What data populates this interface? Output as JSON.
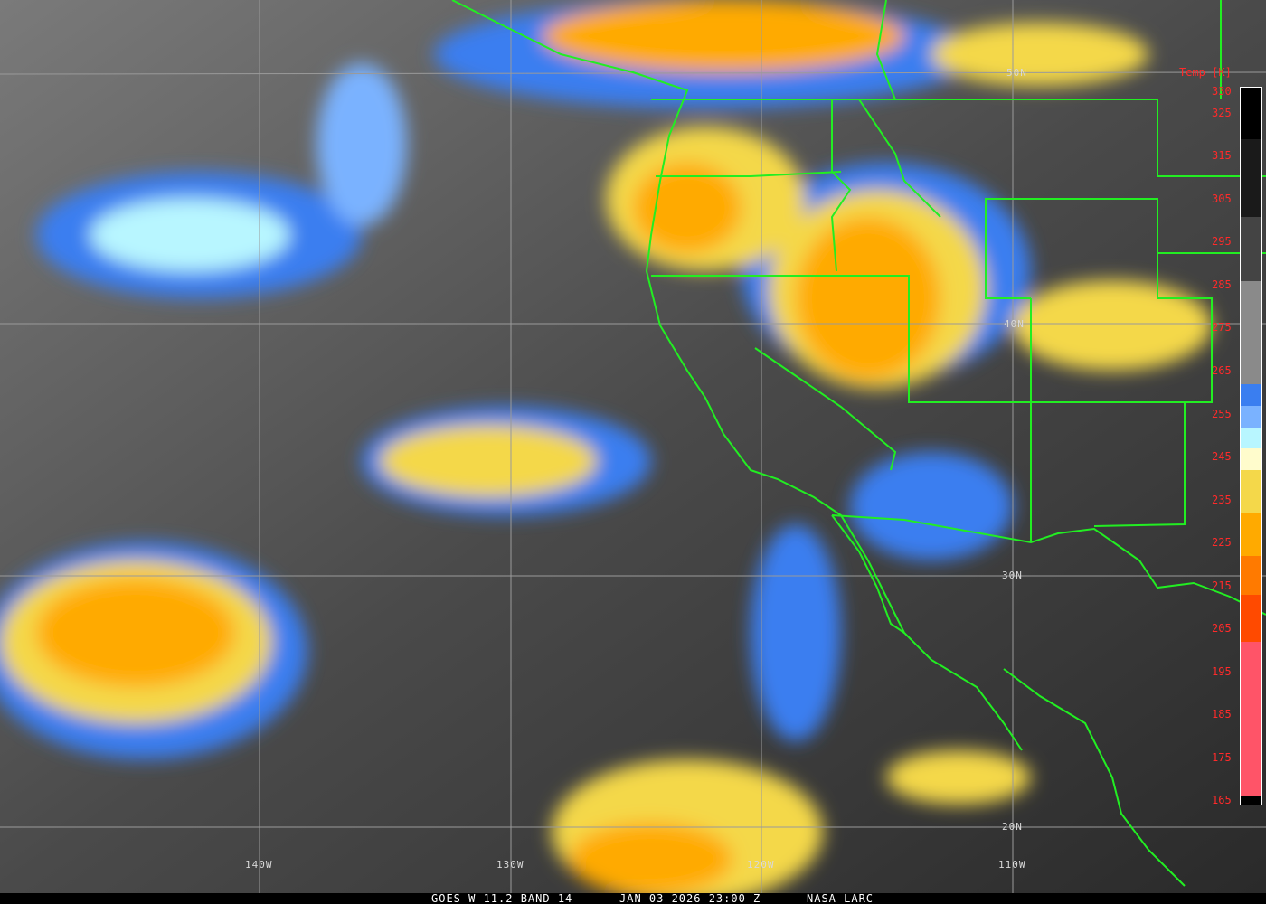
{
  "caption": {
    "satellite": "GOES-W 11.2 BAND 14",
    "datetime": "JAN 03 2026 23:00 Z",
    "source": "NASA LARC"
  },
  "colorbar": {
    "title": "Temp [K]",
    "labels": [
      "330",
      "325",
      "315",
      "305",
      "295",
      "285",
      "275",
      "265",
      "255",
      "245",
      "235",
      "225",
      "215",
      "205",
      "195",
      "185",
      "175",
      "165"
    ],
    "segments": [
      {
        "color": "#000000",
        "from": 330,
        "to": 318
      },
      {
        "color": "#1a1a1a",
        "from": 318,
        "to": 300
      },
      {
        "color": "#444444",
        "from": 300,
        "to": 285
      },
      {
        "color": "#8a8a8a",
        "from": 285,
        "to": 261
      },
      {
        "color": "#3a7ef0",
        "from": 261,
        "to": 256
      },
      {
        "color": "#7ab2ff",
        "from": 256,
        "to": 251
      },
      {
        "color": "#b8f6ff",
        "from": 251,
        "to": 246
      },
      {
        "color": "#fffccc",
        "from": 246,
        "to": 241
      },
      {
        "color": "#f4d84a",
        "from": 241,
        "to": 231
      },
      {
        "color": "#ffaa00",
        "from": 231,
        "to": 221
      },
      {
        "color": "#ff7a00",
        "from": 221,
        "to": 212
      },
      {
        "color": "#ff4a00",
        "from": 212,
        "to": 201
      },
      {
        "color": "#ff5468",
        "from": 201,
        "to": 165
      },
      {
        "color": "#000000",
        "from": 165,
        "to": 163
      }
    ]
  },
  "grid": {
    "latitudes": [
      "50N",
      "40N",
      "30N",
      "20N"
    ],
    "longitudes": [
      "140W",
      "130W",
      "120W",
      "110W"
    ]
  },
  "colors": {
    "boundaries": "#22ee22",
    "grid": "#9a9a9a",
    "labels": "#ff2a2a"
  }
}
